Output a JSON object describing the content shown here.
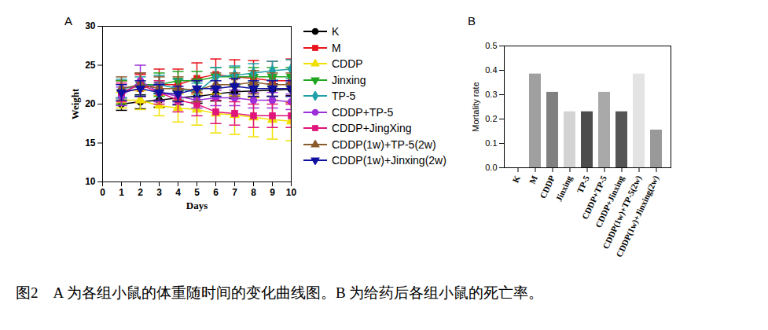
{
  "chart_data": [
    {
      "type": "line",
      "title": "A",
      "x_label": "Days",
      "y_label": "Weight",
      "x": [
        1,
        2,
        3,
        4,
        5,
        6,
        7,
        8,
        9,
        10
      ],
      "xlim": [
        0,
        10
      ],
      "xticks": [
        0,
        1,
        2,
        3,
        4,
        5,
        6,
        7,
        8,
        9,
        10
      ],
      "ylim": [
        10,
        30
      ],
      "yticks": [
        10,
        15,
        20,
        25,
        30
      ],
      "legend": "right",
      "series": [
        {
          "name": "K",
          "color": "#000000",
          "marker": "circle",
          "values": [
            20.0,
            20.3,
            20.5,
            20.8,
            21.0,
            21.3,
            21.6,
            21.7,
            21.8,
            21.9
          ],
          "errors": [
            0.8,
            0.9,
            0.9,
            0.9,
            0.9,
            0.9,
            0.9,
            0.8,
            0.8,
            0.8
          ]
        },
        {
          "name": "M",
          "color": "#e8141b",
          "marker": "square",
          "values": [
            21.5,
            22.0,
            22.5,
            22.5,
            23.3,
            23.8,
            23.5,
            23.3,
            23.0,
            23.0
          ],
          "errors": [
            1.5,
            1.8,
            2.0,
            2.0,
            2.0,
            2.0,
            2.2,
            2.3,
            2.5,
            2.8
          ]
        },
        {
          "name": "CDDP",
          "color": "#f0e000",
          "marker": "triangle-up",
          "values": [
            20.5,
            20.5,
            19.8,
            19.5,
            19.3,
            18.8,
            18.6,
            18.3,
            18.0,
            17.8
          ],
          "errors": [
            1.0,
            1.2,
            1.3,
            1.8,
            2.0,
            2.5,
            2.5,
            2.5,
            2.5,
            2.5
          ]
        },
        {
          "name": "Jinxing",
          "color": "#1fa51f",
          "marker": "triangle-down",
          "values": [
            21.5,
            22.5,
            22.5,
            23.0,
            23.0,
            23.5,
            23.5,
            23.5,
            23.5,
            23.5
          ],
          "errors": [
            1.5,
            1.5,
            1.5,
            1.2,
            1.2,
            1.2,
            1.2,
            1.2,
            1.2,
            1.2
          ]
        },
        {
          "name": "TP-5",
          "color": "#1fa0a8",
          "marker": "diamond",
          "values": [
            22.0,
            22.3,
            22.5,
            22.0,
            21.5,
            23.5,
            23.7,
            24.0,
            24.3,
            24.5
          ],
          "errors": [
            1.2,
            1.2,
            1.2,
            1.2,
            1.2,
            1.2,
            1.2,
            1.2,
            1.2,
            1.2
          ]
        },
        {
          "name": "CDDP+TP-5",
          "color": "#9b30d9",
          "marker": "circle",
          "values": [
            21.0,
            23.0,
            21.5,
            21.0,
            20.5,
            20.8,
            20.8,
            20.5,
            20.5,
            20.3
          ],
          "errors": [
            1.2,
            2.0,
            1.2,
            1.0,
            1.0,
            1.0,
            1.0,
            1.0,
            1.0,
            1.0
          ]
        },
        {
          "name": "CDDP+JingXing",
          "color": "#e0147a",
          "marker": "square",
          "values": [
            21.5,
            22.5,
            21.5,
            20.5,
            20.0,
            19.0,
            18.8,
            18.5,
            18.5,
            18.5
          ],
          "errors": [
            1.2,
            1.5,
            1.5,
            1.5,
            1.5,
            1.5,
            1.5,
            1.5,
            1.5,
            1.5
          ]
        },
        {
          "name": "CDDP(1w)+TP-5(2w)",
          "color": "#8b5a2b",
          "marker": "triangle-up",
          "values": [
            22.0,
            22.5,
            22.0,
            22.0,
            21.8,
            22.5,
            22.5,
            22.8,
            22.5,
            22.5
          ],
          "errors": [
            1.5,
            1.5,
            1.5,
            1.5,
            1.5,
            1.5,
            1.5,
            1.5,
            1.5,
            1.5
          ]
        },
        {
          "name": "CDDP(1w)+Jinxing(2w)",
          "color": "#1010a0",
          "marker": "triangle-down",
          "values": [
            21.5,
            22.0,
            21.5,
            21.3,
            22.0,
            22.0,
            22.3,
            22.0,
            22.0,
            22.0
          ],
          "errors": [
            1.0,
            1.0,
            1.0,
            1.0,
            1.0,
            1.0,
            1.0,
            1.0,
            1.0,
            1.0
          ]
        }
      ]
    },
    {
      "type": "bar",
      "title": "B",
      "y_label": "Mortality rate",
      "categories": [
        "K",
        "M",
        "CDDP",
        "Jinxing",
        "TP-5",
        "CDDP+TP-5",
        "CDDP+Jinxing",
        "CDDP(1w)+TP-5(2w)",
        "CDDP(1w)+Jinxing(2w)"
      ],
      "values": [
        0,
        0.385,
        0.31,
        0.23,
        0.23,
        0.31,
        0.23,
        0.385,
        0.155
      ],
      "colors": [
        "#808080",
        "#a0a0a0",
        "#808080",
        "#d3d3d3",
        "#4d4d4d",
        "#a9a9a9",
        "#555555",
        "#e3e3e3",
        "#999999"
      ],
      "ylim": [
        0,
        0.5
      ],
      "yticks": [
        {
          "value": 0,
          "label": "0.0"
        },
        {
          "value": 0.1,
          "label": "0.1"
        },
        {
          "value": 0.2,
          "label": "0.2"
        },
        {
          "value": 0.3,
          "label": "0.3"
        },
        {
          "value": 0.4,
          "label": "0.4"
        },
        {
          "value": 0.5,
          "label": "0.5"
        }
      ]
    }
  ],
  "caption": "图2　A 为各组小鼠的体重随时间的变化曲线图。B 为给药后各组小鼠的死亡率。"
}
